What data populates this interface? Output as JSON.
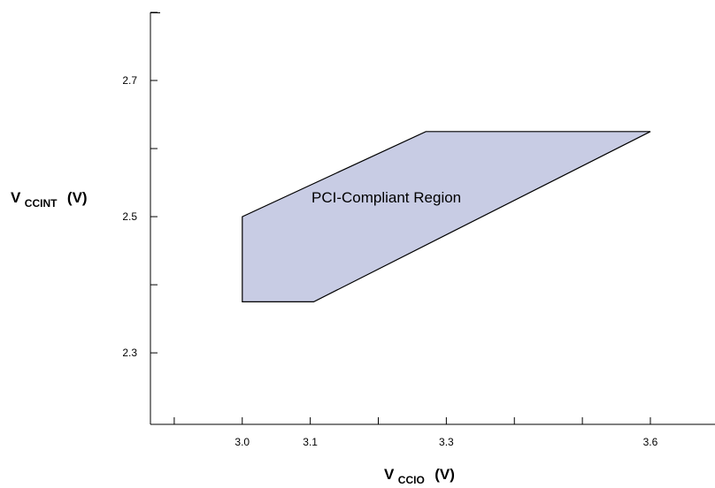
{
  "chart_data": {
    "type": "area",
    "title": "",
    "xlabel": {
      "main": "V",
      "sub": "CCIO",
      "unit": "(V)"
    },
    "ylabel": {
      "main": "V",
      "sub": "CCINT",
      "unit": "(V)"
    },
    "xlim": [
      2.865,
      3.695
    ],
    "ylim": [
      2.195,
      2.8
    ],
    "x_ticks": [
      2.9,
      3.0,
      3.1,
      3.2,
      3.3,
      3.4,
      3.5,
      3.6
    ],
    "x_tick_labels": [
      {
        "value": 3.0,
        "label": "3.0"
      },
      {
        "value": 3.1,
        "label": "3.1"
      },
      {
        "value": 3.3,
        "label": "3.3"
      },
      {
        "value": 3.6,
        "label": "3.6"
      }
    ],
    "y_ticks": [
      2.3,
      2.4,
      2.5,
      2.6,
      2.7,
      2.8
    ],
    "y_tick_labels": [
      {
        "value": 2.3,
        "label": "2.3"
      },
      {
        "value": 2.5,
        "label": "2.5"
      },
      {
        "value": 2.7,
        "label": "2.7"
      }
    ],
    "grid": false,
    "region": {
      "label": "PCI-Compliant Region",
      "fill": "#c8cce4",
      "stroke": "#000000",
      "points": [
        {
          "x": 3.0,
          "y": 2.375
        },
        {
          "x": 3.0,
          "y": 2.5
        },
        {
          "x": 3.27,
          "y": 2.625
        },
        {
          "x": 3.6,
          "y": 2.625
        },
        {
          "x": 3.105,
          "y": 2.375
        }
      ]
    }
  }
}
